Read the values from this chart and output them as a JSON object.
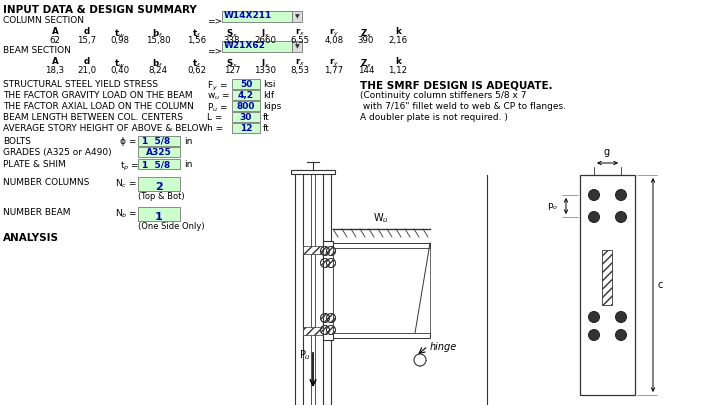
{
  "title": "INPUT DATA & DESIGN SUMMARY",
  "bg_color": "#ffffff",
  "green_bg": "#ccffcc",
  "blue_text": "#0000bb",
  "black_text": "#000000",
  "col_section_label": "COLUMN SECTION",
  "col_section_value": "W14X211",
  "col_values": [
    "62",
    "15,7",
    "0,98",
    "15,80",
    "1,56",
    "338",
    "2660",
    "6,55",
    "4,08",
    "390",
    "2,16"
  ],
  "beam_section_label": "BEAM SECTION",
  "beam_section_value": "W21X62",
  "beam_values": [
    "18,3",
    "21,0",
    "0,40",
    "8,24",
    "0,62",
    "127",
    "1330",
    "8,53",
    "1,77",
    "144",
    "1,12"
  ],
  "fy_label": "STRUCTURAL STEEL YIELD STRESS",
  "fy_val": "50",
  "fy_unit": "ksi",
  "wu_label": "THE FACTOR GRAVITY LOAD ON THE BEAM",
  "wu_val": "4,2",
  "wu_unit": "klf",
  "pu_label": "THE FACTOR AXIAL LOAD ON THE COLUMN",
  "pu_val": "800",
  "pu_unit": "kips",
  "L_label": "BEAM LENGTH BETWEEN COL. CENTERS",
  "L_val": "30",
  "L_unit": "ft",
  "h_label": "AVERAGE STORY HEIGHT OF ABOVE & BELOW",
  "h_val": "12",
  "h_unit": "ft",
  "bolts_label": "BOLTS",
  "bolts_val": "1  5/8",
  "bolts_unit": "in",
  "grades_label": "GRADES (A325 or A490)",
  "grades_val": "A325",
  "plate_label": "PLATE & SHIM",
  "plate_val": "1  5/8",
  "plate_unit": "in",
  "nc_label": "NUMBER COLUMNS",
  "nc_val": "2",
  "nc_sub": "(Top & Bot)",
  "nb_label": "NUMBER BEAM",
  "nb_val": "1",
  "nb_sub": "(One Side Only)",
  "analysis_label": "ANALYSIS",
  "smrf_text": "THE SMRF DESIGN IS ADEQUATE.",
  "note1": "(Continuity column stiffeners 5/8 x 7",
  "note2": " with 7/16\" fillet weld to web & CP to flanges.",
  "note3": "A doubler plate is not required. )"
}
